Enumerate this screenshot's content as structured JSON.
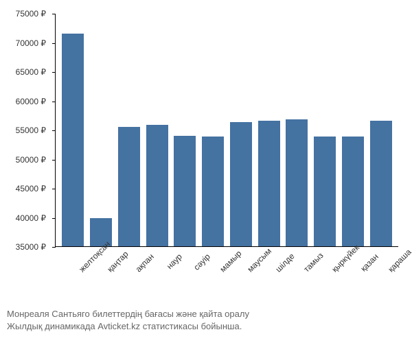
{
  "chart": {
    "type": "bar",
    "categories": [
      "желтоқсан",
      "қаңтар",
      "ақпан",
      "наур",
      "сәуір",
      "мамыр",
      "маусым",
      "шілде",
      "тамыз",
      "қыркүйек",
      "қазан",
      "қараша"
    ],
    "values": [
      71500,
      39800,
      55500,
      55800,
      54000,
      53800,
      56300,
      56500,
      56800,
      53800,
      53800,
      56500
    ],
    "bar_color": "#4472a1",
    "ylim": [
      35000,
      75000
    ],
    "ytick_step": 5000,
    "y_suffix": " ₽",
    "background_color": "#ffffff",
    "label_fontsize": 12
  },
  "caption": {
    "line1": "Монреаля Сантьяго билеттердің бағасы және қайта оралу",
    "line2": "Жылдық динамикада Avticket.kz статистикасы бойынша."
  }
}
